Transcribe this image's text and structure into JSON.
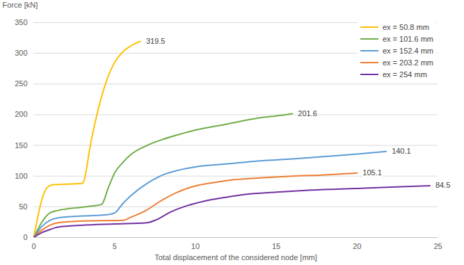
{
  "chart_data": {
    "type": "line",
    "x_label": "Total displacement of the considered node [mm]",
    "y_label": "Force [kN]",
    "xlim": [
      0,
      25
    ],
    "xticks": [
      0,
      5,
      10,
      15,
      20,
      25
    ],
    "ylim": [
      0,
      350
    ],
    "yticks": [
      0,
      50,
      100,
      150,
      200,
      250,
      300,
      350
    ],
    "grid": true,
    "legend": "top-right",
    "series": [
      {
        "name": "ex = 50.8 mm",
        "color": "#FFC000",
        "x": [
          0,
          0.3,
          0.6,
          0.9,
          1.2,
          2,
          3,
          3.1,
          3.5,
          4,
          4.5,
          5,
          5.5,
          6,
          6.6
        ],
        "values": [
          0,
          40,
          70,
          83,
          86,
          87,
          88,
          92,
          150,
          210,
          255,
          285,
          302,
          312,
          319.5
        ]
      },
      {
        "name": "ex = 101.6 mm",
        "color": "#70AD47",
        "x": [
          0,
          0.5,
          1,
          1.5,
          2.5,
          3.5,
          4.2,
          4.6,
          5,
          5.5,
          6,
          7,
          8,
          9,
          10,
          12,
          14,
          15,
          16
        ],
        "values": [
          0,
          25,
          40,
          44,
          48,
          51,
          54,
          80,
          105,
          122,
          135,
          150,
          160,
          168,
          175,
          185,
          195,
          198,
          201.6
        ]
      },
      {
        "name": "ex = 152.4 mm",
        "color": "#5B9BD5",
        "x": [
          0,
          0.5,
          1,
          1.5,
          3,
          4.5,
          5,
          5.5,
          6,
          7,
          8,
          9,
          10,
          12,
          14,
          16,
          18,
          20,
          21.8
        ],
        "values": [
          0,
          18,
          28,
          32,
          35,
          37,
          40,
          55,
          68,
          88,
          102,
          110,
          115,
          120,
          125,
          128,
          132,
          136,
          140.1
        ]
      },
      {
        "name": "ex = 203.2 mm",
        "color": "#ED7D31",
        "x": [
          0,
          0.5,
          1,
          1.5,
          3,
          5.5,
          6,
          7,
          8,
          9,
          10,
          11,
          12,
          14,
          16,
          18,
          20
        ],
        "values": [
          0,
          12,
          20,
          24,
          27,
          28,
          33,
          45,
          62,
          75,
          84,
          89,
          93,
          97,
          100,
          102,
          105.1
        ]
      },
      {
        "name": "ex = 254 mm",
        "color": "#7030A0",
        "x": [
          0,
          0.5,
          1,
          1.5,
          3,
          5,
          7,
          7.5,
          8.5,
          9.5,
          10.5,
          12,
          13,
          15,
          17,
          19,
          21,
          24.5
        ],
        "values": [
          0,
          8,
          13,
          17,
          20,
          22,
          24,
          28,
          42,
          52,
          59,
          66,
          70,
          74,
          77,
          79,
          81,
          84.5
        ]
      }
    ],
    "annotations": [
      {
        "x": 6.6,
        "y": 319.5,
        "text": "319.5"
      },
      {
        "x": 16,
        "y": 201.6,
        "text": "201.6"
      },
      {
        "x": 21.8,
        "y": 140.1,
        "text": "140.1"
      },
      {
        "x": 20,
        "y": 105.1,
        "text": "105.1"
      },
      {
        "x": 24.5,
        "y": 84.5,
        "text": "84.5"
      }
    ]
  }
}
